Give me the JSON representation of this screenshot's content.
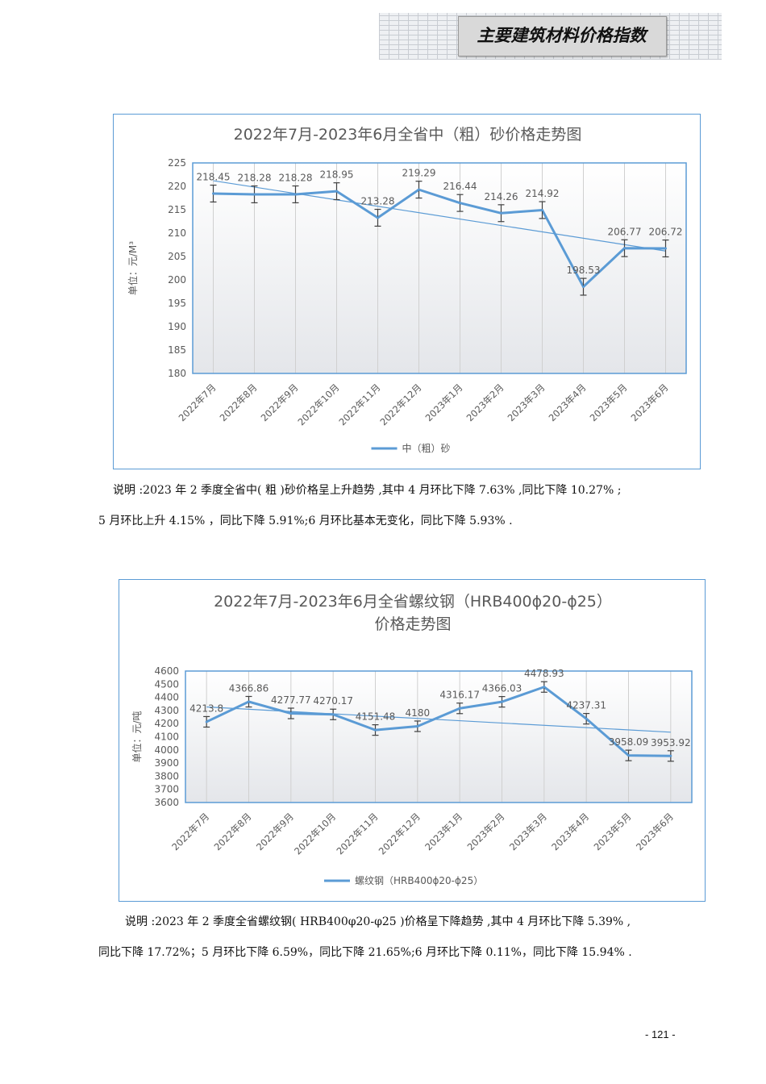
{
  "header": {
    "title": "主要建筑材料价格指数"
  },
  "colors": {
    "line": "#5b9bd5",
    "axis_text": "#595959",
    "grid": "#d0d0d0",
    "error": "#404040"
  },
  "chart_data": [
    {
      "type": "line",
      "title": "2022年7月-2023年6月全省中（粗）砂价格走势图",
      "ylabel": "单位：元/M³",
      "ylim": [
        180,
        225
      ],
      "ystep": 5,
      "categories": [
        "2022年7月",
        "2022年8月",
        "2022年9月",
        "2022年10月",
        "2022年11月",
        "2022年12月",
        "2023年1月",
        "2023年2月",
        "2023年3月",
        "2023年4月",
        "2023年5月",
        "2023年6月"
      ],
      "series": [
        {
          "name": "中（粗）砂",
          "values": [
            218.45,
            218.28,
            218.28,
            218.95,
            213.28,
            219.29,
            216.44,
            214.26,
            214.92,
            198.53,
            206.77,
            206.72
          ],
          "labels": [
            "218.45",
            "218.28",
            "218.28",
            "218.95",
            "213.28",
            "219.29",
            "216.44",
            "214.26",
            "214.92",
            "198.53",
            "206.77",
            "206.72"
          ]
        }
      ],
      "error_bar": 1.8,
      "trendline": "linear",
      "legend": "bottom"
    },
    {
      "type": "line",
      "title": [
        "2022年7月-2023年6月全省螺纹钢（HRB400ϕ20-ϕ25）",
        "价格走势图"
      ],
      "ylabel": "单位：元/吨",
      "ylim": [
        3600,
        4600
      ],
      "ystep": 100,
      "categories": [
        "2022年7月",
        "2022年8月",
        "2022年9月",
        "2022年10月",
        "2022年11月",
        "2022年12月",
        "2023年1月",
        "2023年2月",
        "2023年3月",
        "2023年4月",
        "2023年5月",
        "2023年6月"
      ],
      "series": [
        {
          "name": "螺纹钢（HRB400ϕ20-ϕ25）",
          "values": [
            4213.8,
            4366.86,
            4277.77,
            4270.17,
            4151.48,
            4180,
            4316.17,
            4366.03,
            4478.93,
            4237.31,
            3958.09,
            3953.92
          ],
          "labels": [
            "4213.8",
            "4366.86",
            "4277.77",
            "4270.17",
            "4151.48",
            "4180",
            "4316.17",
            "4366.03",
            "4478.93",
            "4237.31",
            "3958.09",
            "3953.92"
          ]
        }
      ],
      "error_bar": 40,
      "trendline": "linear",
      "legend": "bottom"
    }
  ],
  "captions": {
    "sand_1": "说明 :2023 年 2 季度全省中( 粗 )砂价格呈上升趋势 ,其中 4 月环比下降 7.63% ,同比下降 10.27% ;",
    "sand_2": "5 月环比上升 4.15% ，同比下降 5.91%;6 月环比基本无变化，同比下降 5.93% .",
    "steel_1": "说明 :2023 年 2 季度全省螺纹钢( HRB400φ20-φ25 )价格呈下降趋势 ,其中 4 月环比下降 5.39% ,",
    "steel_2": "同比下降 17.72%；5 月环比下降 6.59%，同比下降 21.65%;6 月环比下降 0.11%，同比下降 15.94% ."
  },
  "footer": {
    "page": "- 121 -"
  }
}
